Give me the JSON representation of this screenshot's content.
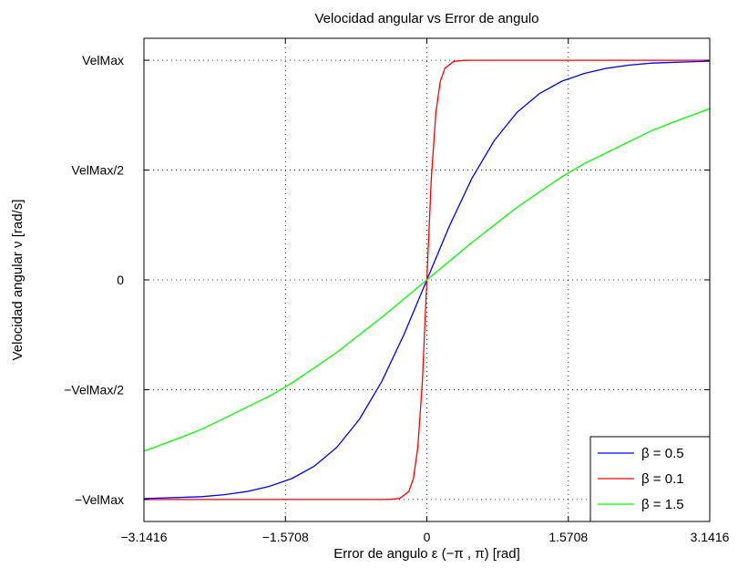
{
  "chart_data": {
    "type": "line",
    "title": "Velocidad angular vs Error de angulo",
    "xlabel": "Error de angulo ε (−π , π) [rad]",
    "ylabel": "Velocidad angular ν [rad/s]",
    "xlim": [
      -3.1416,
      3.1416
    ],
    "ylim": [
      -1.1,
      1.1
    ],
    "x_ticks": [
      {
        "value": -3.1416,
        "label": "−3.1416"
      },
      {
        "value": -1.5708,
        "label": "−1.5708"
      },
      {
        "value": 0,
        "label": "0"
      },
      {
        "value": 1.5708,
        "label": "1.5708"
      },
      {
        "value": 3.1416,
        "label": "3.1416"
      }
    ],
    "y_ticks": [
      {
        "value": -1,
        "label": "−VelMax"
      },
      {
        "value": -0.5,
        "label": "−VelMax/2"
      },
      {
        "value": 0,
        "label": "0"
      },
      {
        "value": 0.5,
        "label": "VelMax/2"
      },
      {
        "value": 1,
        "label": "VelMax"
      }
    ],
    "grid": true,
    "legend_position": "bottom-right",
    "series": [
      {
        "name": "β = 0.5",
        "color": "#0000ff",
        "x": [
          -3.1416,
          -2.75,
          -2.5,
          -2.25,
          -2.0,
          -1.75,
          -1.5,
          -1.25,
          -1.0,
          -0.75,
          -0.5,
          -0.25,
          0,
          0.25,
          0.5,
          0.75,
          1.0,
          1.25,
          1.5,
          1.75,
          2.0,
          2.25,
          2.5,
          2.75,
          3.1416
        ],
        "y": [
          -0.996,
          -0.991,
          -0.987,
          -0.978,
          -0.964,
          -0.94,
          -0.905,
          -0.848,
          -0.762,
          -0.635,
          -0.462,
          -0.245,
          0,
          0.245,
          0.462,
          0.635,
          0.762,
          0.848,
          0.905,
          0.94,
          0.964,
          0.978,
          0.987,
          0.991,
          0.996
        ]
      },
      {
        "name": "β = 0.1",
        "color": "#ff0000",
        "x": [
          -3.1416,
          -1.5,
          -0.75,
          -0.5,
          -0.4,
          -0.3,
          -0.2,
          -0.15,
          -0.1,
          -0.05,
          0,
          0.05,
          0.1,
          0.15,
          0.2,
          0.3,
          0.4,
          0.5,
          0.75,
          1.5,
          3.1416
        ],
        "y": [
          -1.0,
          -1.0,
          -1.0,
          -0.9999,
          -0.9993,
          -0.995,
          -0.964,
          -0.905,
          -0.762,
          -0.462,
          0,
          0.462,
          0.762,
          0.905,
          0.964,
          0.995,
          0.9993,
          0.9999,
          1.0,
          1.0,
          1.0
        ]
      },
      {
        "name": "β = 1.5",
        "color": "#00ff00",
        "x": [
          -3.1416,
          -2.75,
          -2.5,
          -2.25,
          -2.0,
          -1.75,
          -1.5,
          -1.25,
          -1.0,
          -0.75,
          -0.5,
          -0.25,
          0,
          0.25,
          0.5,
          0.75,
          1.0,
          1.25,
          1.5,
          1.75,
          2.0,
          2.25,
          2.5,
          2.75,
          3.1416
        ],
        "y": [
          -0.78,
          -0.72,
          -0.68,
          -0.63,
          -0.58,
          -0.53,
          -0.47,
          -0.4,
          -0.33,
          -0.25,
          -0.17,
          -0.085,
          0,
          0.085,
          0.17,
          0.25,
          0.33,
          0.4,
          0.47,
          0.53,
          0.58,
          0.63,
          0.68,
          0.72,
          0.78
        ]
      }
    ]
  }
}
